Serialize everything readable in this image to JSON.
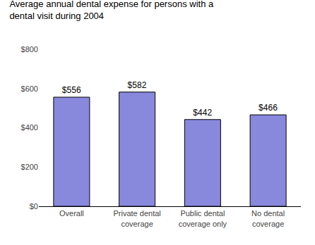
{
  "chart_data": {
    "type": "bar",
    "title": "Average annual dental expense for persons with a dental visit during 2004",
    "categories": [
      "Overall",
      "Private dental\ncoverage",
      "Public dental\ncoverage only",
      "No dental\ncoverage"
    ],
    "values": [
      556,
      582,
      442,
      466
    ],
    "value_labels": [
      "$556",
      "$582",
      "$442",
      "$466"
    ],
    "data_labels": true,
    "color": "#8888dd",
    "ylim": [
      0,
      800
    ],
    "yticks": [
      {
        "value": 0,
        "label": "$0"
      },
      {
        "value": 200,
        "label": "$200"
      },
      {
        "value": 400,
        "label": "$400"
      },
      {
        "value": 600,
        "label": "$600"
      },
      {
        "value": 800,
        "label": "$800"
      }
    ],
    "grid": false
  }
}
